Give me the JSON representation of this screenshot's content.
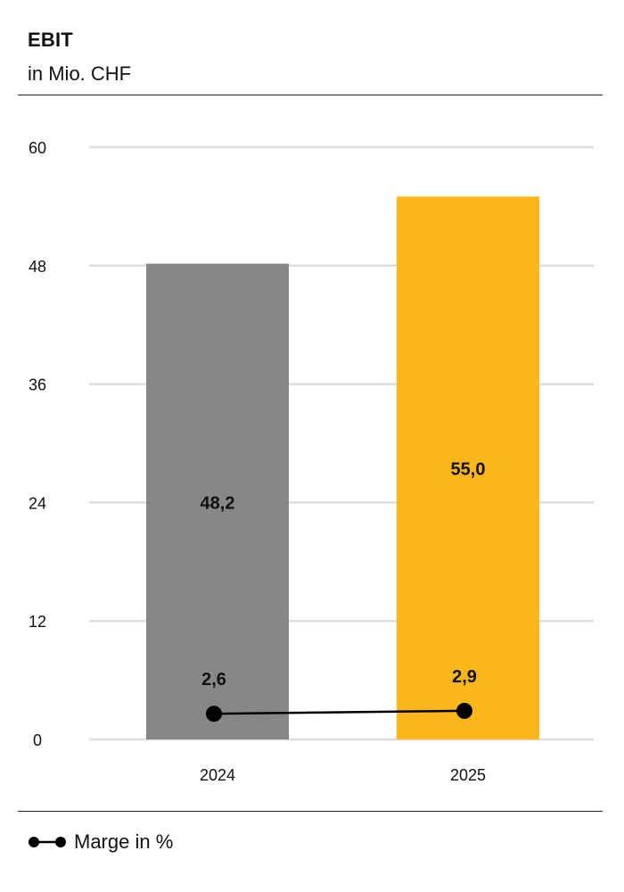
{
  "header": {
    "title": "EBIT",
    "subtitle": "in Mio. CHF"
  },
  "legend": {
    "items": [
      {
        "label": "Marge in %",
        "icon": "line-with-dot-markers"
      }
    ]
  },
  "colors": {
    "bar_2024": "#878787",
    "bar_2025": "#fdb71b",
    "line": "#000000",
    "grid": "#dddddd",
    "text": "#111111"
  },
  "chart_data": {
    "type": "bar",
    "categories": [
      "2024",
      "2025"
    ],
    "ylim": [
      0,
      60
    ],
    "yticks": [
      0,
      12,
      24,
      36,
      48,
      60
    ],
    "ytick_labels": [
      "0",
      "12",
      "24",
      "36",
      "48",
      "60"
    ],
    "grid": true,
    "series": [
      {
        "type": "bar",
        "values": [
          48.2,
          55.0
        ],
        "labels": [
          "48,2",
          "55,0"
        ]
      },
      {
        "name": "Marge in %",
        "type": "line",
        "values": [
          2.6,
          2.9
        ],
        "labels": [
          "2,6",
          "2,9"
        ]
      }
    ],
    "legend_position": "bottom-left"
  }
}
